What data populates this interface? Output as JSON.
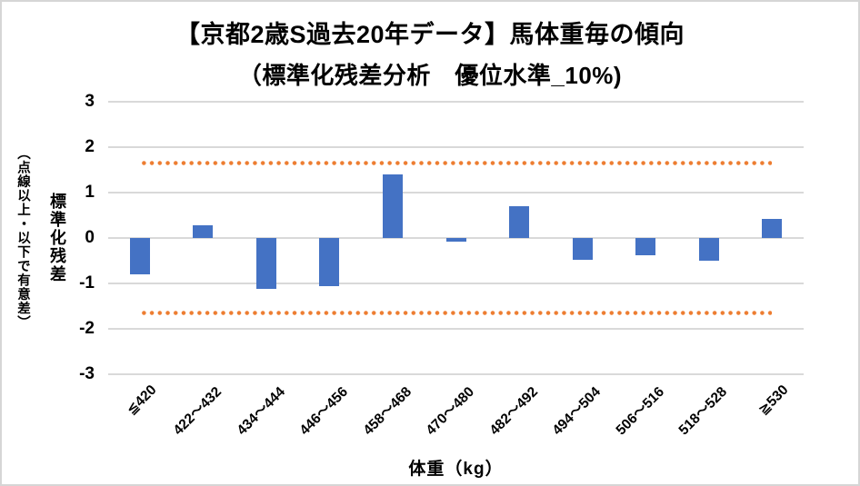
{
  "chart_data": {
    "type": "bar",
    "title_line1": "【京都2歳S過去20年データ】馬体重毎の傾向",
    "title_line2": "（標準化残差分析　優位水準_10%)",
    "categories": [
      "≦420",
      "422～432",
      "434～444",
      "446～456",
      "458～468",
      "470～480",
      "482～492",
      "494～504",
      "506～516",
      "518～528",
      "≧530"
    ],
    "values": [
      -0.8,
      0.28,
      -1.12,
      -1.05,
      1.4,
      -0.07,
      0.7,
      -0.48,
      -0.37,
      -0.5,
      0.42
    ],
    "xlabel": "体重（kg）",
    "ylabel_main": "標準化残差",
    "ylabel_sub": "（点線以上・以下で有意差）",
    "y_ticks": [
      3,
      2,
      1,
      0,
      -1,
      -2,
      -3
    ],
    "ylim": [
      -3,
      3
    ],
    "threshold_upper": 1.645,
    "threshold_lower": -1.645,
    "grid": true,
    "legend": false,
    "bar_color": "#4472C4",
    "threshold_dot_color": "#ED7D31",
    "gridline_color": "#D9D9D9",
    "text_color": "#000000",
    "background_color": "#FFFFFF",
    "border_color": "#D6D6D6"
  }
}
